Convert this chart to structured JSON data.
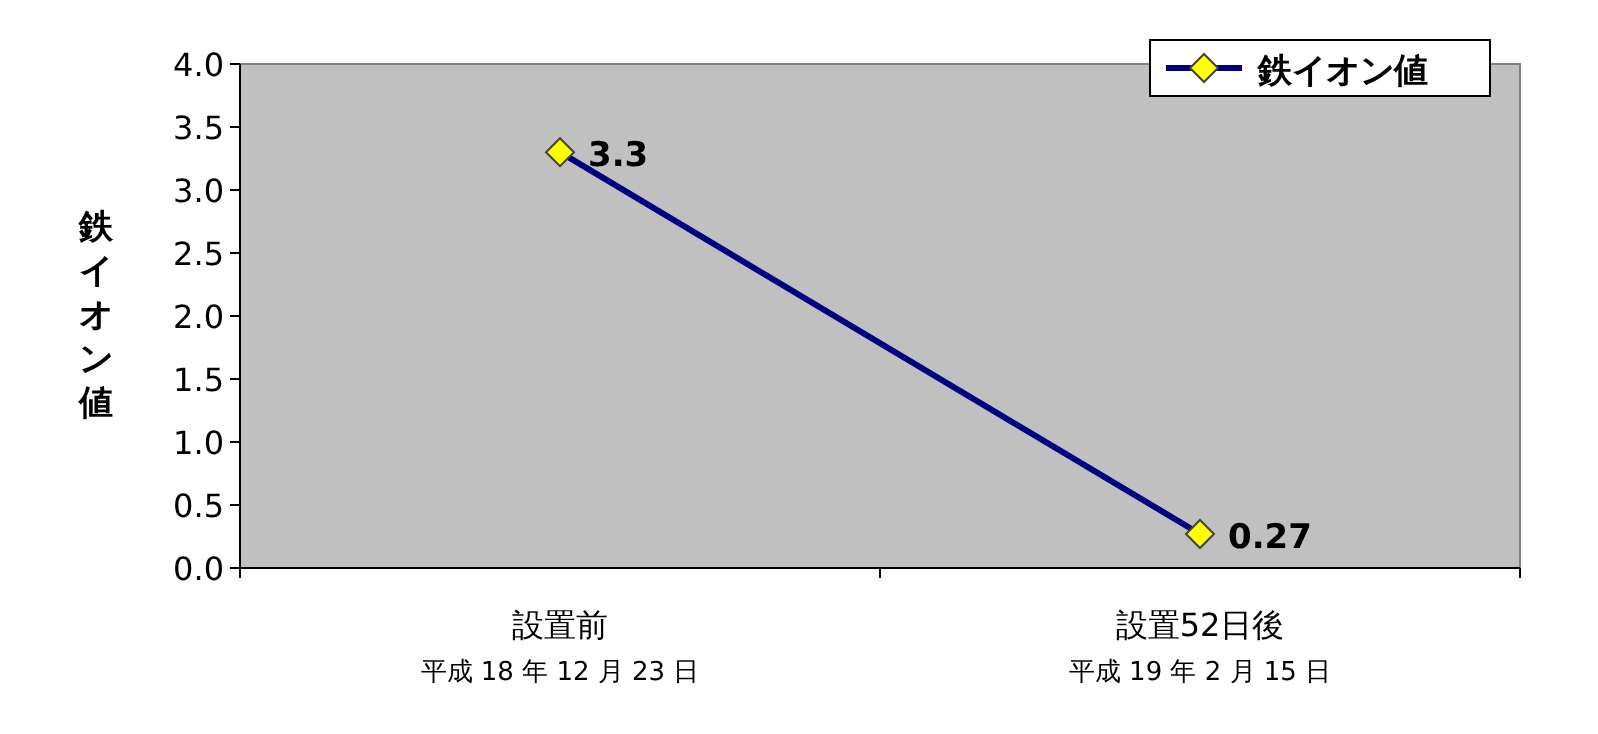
{
  "chart_data": {
    "type": "line",
    "ylabel": "鉄イオン値",
    "categories": [
      "設置前",
      "設置52日後"
    ],
    "annotations": [
      "平成 18 年 12 月 23 日",
      "平成 19 年 2 月 15 日"
    ],
    "series": [
      {
        "name": "鉄イオン値",
        "color": "#000080",
        "values": [
          3.3,
          0.27
        ]
      }
    ],
    "ylim": [
      0,
      4
    ],
    "yticks": [
      {
        "value": 0,
        "label": "0.0"
      },
      {
        "value": 0.5,
        "label": "0.5"
      },
      {
        "value": 1,
        "label": "1.0"
      },
      {
        "value": 1.5,
        "label": "1.5"
      },
      {
        "value": 2,
        "label": "2.0"
      },
      {
        "value": 2.5,
        "label": "2.5"
      },
      {
        "value": 3,
        "label": "3.0"
      },
      {
        "value": 3.5,
        "label": "3.5"
      },
      {
        "value": 4,
        "label": "4.0"
      }
    ],
    "data_labels": true,
    "legend": "top right",
    "marker": "diamond",
    "line_style": "solid"
  }
}
